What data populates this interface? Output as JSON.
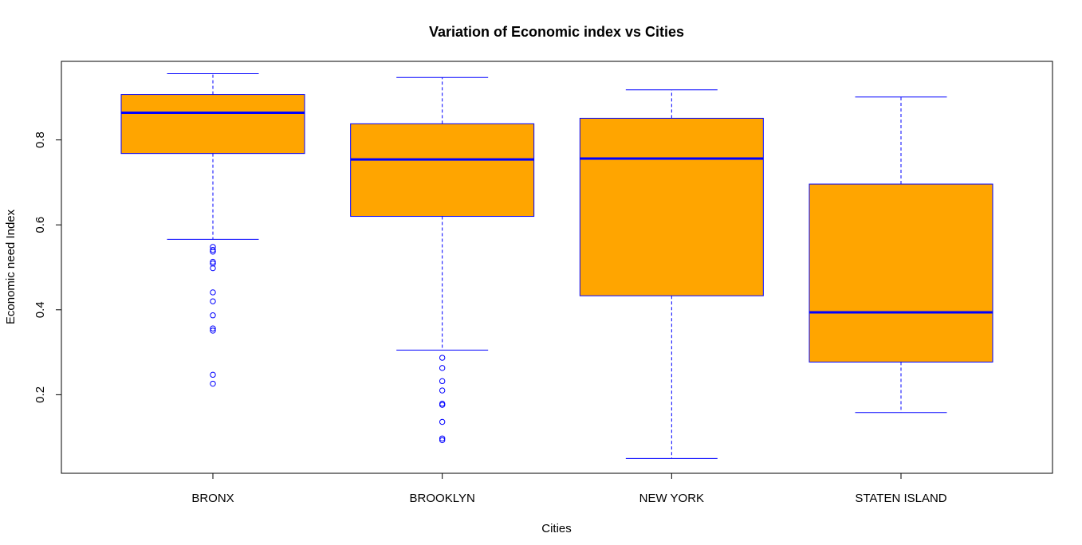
{
  "chart_data": {
    "type": "boxplot",
    "title": "Variation of Economic index vs Cities",
    "xlabel": "Cities",
    "ylabel": "Economic need Index",
    "ylim": [
      0.015,
      0.985
    ],
    "yticks": [
      0.2,
      0.4,
      0.6,
      0.8
    ],
    "grid": false,
    "box_fill": "#FFA500",
    "line_color": "#0000FF",
    "categories": [
      "BRONX",
      "BROOKLYN",
      "NEW YORK",
      "STATEN ISLAND"
    ],
    "boxes": [
      {
        "category": "BRONX",
        "whisker_low": 0.566,
        "q1": 0.768,
        "median": 0.864,
        "q3": 0.907,
        "whisker_high": 0.956,
        "outliers": [
          0.548,
          0.541,
          0.537,
          0.513,
          0.509,
          0.498,
          0.441,
          0.42,
          0.387,
          0.356,
          0.351,
          0.247,
          0.226
        ]
      },
      {
        "category": "BROOKLYN",
        "whisker_low": 0.305,
        "q1": 0.62,
        "median": 0.754,
        "q3": 0.838,
        "whisker_high": 0.947,
        "outliers": [
          0.287,
          0.263,
          0.232,
          0.21,
          0.179,
          0.176,
          0.136,
          0.097,
          0.093
        ]
      },
      {
        "category": "NEW YORK",
        "whisker_low": 0.05,
        "q1": 0.433,
        "median": 0.756,
        "q3": 0.851,
        "whisker_high": 0.918,
        "outliers": []
      },
      {
        "category": "STATEN ISLAND",
        "whisker_low": 0.158,
        "q1": 0.277,
        "median": 0.394,
        "q3": 0.696,
        "whisker_high": 0.901,
        "outliers": []
      }
    ]
  }
}
